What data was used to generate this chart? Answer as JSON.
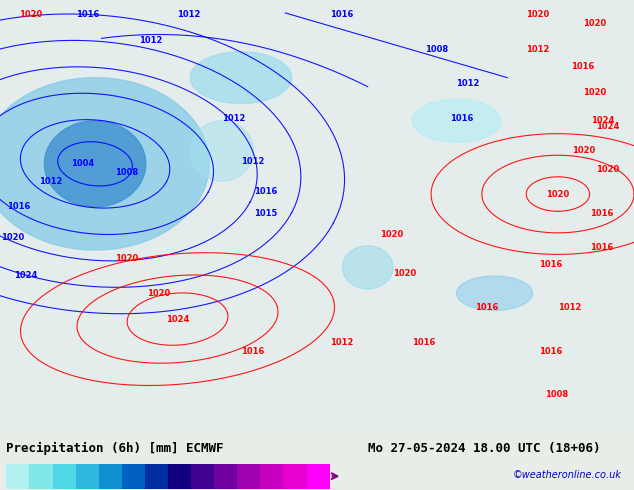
{
  "title_left": "Precipitation (6h) [mm] ECMWF",
  "title_right": "Mo 27-05-2024 18.00 UTC (18+06)",
  "credit": "©weatheronline.co.uk",
  "colorbar_levels": [
    0.1,
    0.5,
    1,
    2,
    5,
    10,
    15,
    20,
    25,
    30,
    35,
    40,
    45,
    50
  ],
  "colorbar_colors": [
    "#b0f0f0",
    "#80e8e8",
    "#50d8e8",
    "#30b8e0",
    "#1090d0",
    "#0060c0",
    "#0030a0",
    "#100080",
    "#400090",
    "#7000a0",
    "#a000b0",
    "#c800c0",
    "#e800d0",
    "#ff00ff"
  ],
  "bg_color": "#e8f4e8",
  "map_bg": "#c8e8c8",
  "text_color": "#000000",
  "font_size_title": 9,
  "font_size_tick": 7,
  "font_size_credit": 7,
  "credit_color": "#0000cc"
}
